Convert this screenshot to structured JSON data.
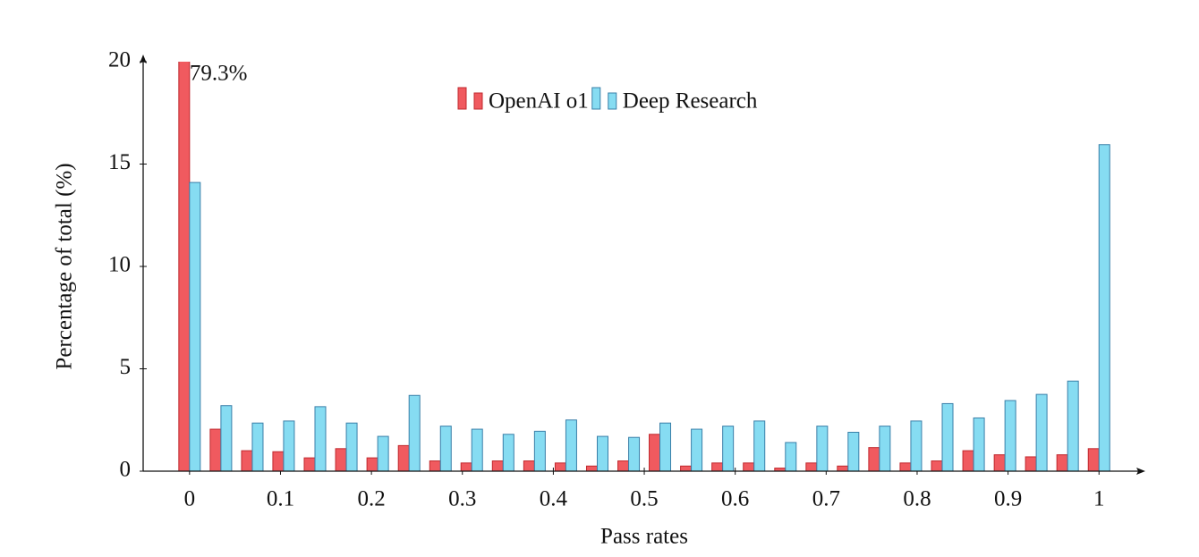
{
  "chart_data": {
    "type": "bar",
    "xlabel": "Pass rates",
    "ylabel": "Percentage of total (%)",
    "x": [
      0,
      0.0345,
      0.069,
      0.1034,
      0.1379,
      0.1724,
      0.2069,
      0.2414,
      0.2759,
      0.3103,
      0.3448,
      0.3793,
      0.4138,
      0.4483,
      0.4828,
      0.5172,
      0.5517,
      0.5862,
      0.6207,
      0.6552,
      0.6897,
      0.7241,
      0.7586,
      0.7931,
      0.8276,
      0.8621,
      0.8966,
      0.931,
      0.9655,
      1
    ],
    "series": [
      {
        "name": "OpenAI o1",
        "color": "#f05a5f",
        "edge": "#c0282d",
        "values": [
          79.3,
          2.05,
          1.0,
          0.95,
          0.65,
          1.1,
          0.65,
          1.25,
          0.5,
          0.4,
          0.5,
          0.5,
          0.4,
          0.25,
          0.5,
          1.8,
          0.25,
          0.4,
          0.4,
          0.15,
          0.4,
          0.25,
          1.15,
          0.4,
          0.5,
          1.0,
          0.8,
          0.7,
          0.8,
          1.1
        ],
        "value_labels": [
          "79.3%",
          null,
          null,
          null,
          null,
          null,
          null,
          null,
          null,
          null,
          null,
          null,
          null,
          null,
          null,
          null,
          null,
          null,
          null,
          null,
          null,
          null,
          null,
          null,
          null,
          null,
          null,
          null,
          null,
          null
        ]
      },
      {
        "name": "Deep Research",
        "color": "#86dcf2",
        "edge": "#3a7fa8",
        "values": [
          14.1,
          3.2,
          2.35,
          2.45,
          3.15,
          2.35,
          1.7,
          3.7,
          2.2,
          2.05,
          1.8,
          1.95,
          2.5,
          1.7,
          1.65,
          2.35,
          2.05,
          2.2,
          2.45,
          1.4,
          2.2,
          1.9,
          2.2,
          2.45,
          3.3,
          2.6,
          3.45,
          3.75,
          4.4,
          15.95
        ]
      }
    ],
    "xlim": [
      -0.051,
      1.046
    ],
    "xticks": [
      0,
      0.1,
      0.2,
      0.3,
      0.4,
      0.5,
      0.6,
      0.7,
      0.8,
      0.9,
      1
    ],
    "ylim": [
      0,
      20
    ],
    "yticks": [
      0,
      5,
      10,
      15,
      20
    ],
    "legend": "top"
  }
}
